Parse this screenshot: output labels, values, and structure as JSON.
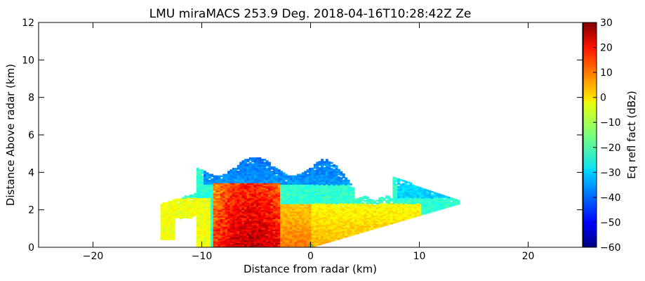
{
  "chart_data": {
    "type": "heatmap",
    "title": "LMU miraMACS 253.9 Deg. 2018-04-16T10:28:42Z  Ze",
    "xlabel": "Distance from radar (km)",
    "ylabel": "Distance Above radar  (km)",
    "xlim": [
      -25,
      25
    ],
    "ylim": [
      0,
      12
    ],
    "xticks": [
      -20,
      -10,
      0,
      10,
      20
    ],
    "yticks": [
      0,
      2,
      4,
      6,
      8,
      10,
      12
    ],
    "grid": false,
    "colorbar": {
      "label": "Eq refl fact (dBz)",
      "range": [
        -60,
        30
      ],
      "ticks": [
        30,
        20,
        10,
        0,
        -10,
        -20,
        -30,
        -40,
        -50,
        -60
      ],
      "colormap": "jet"
    },
    "echo_regions": [
      {
        "name": "upper_layer",
        "x": [
          -10.5,
          4.0
        ],
        "y": [
          3.3,
          5.0
        ],
        "dbz": -38
      },
      {
        "name": "mid_layer",
        "x": [
          -13.5,
          13.5
        ],
        "y": [
          1.8,
          3.6
        ],
        "dbz": -22
      },
      {
        "name": "convective_core",
        "x": [
          -9.0,
          -3.0
        ],
        "y": [
          0.0,
          3.4
        ],
        "dbz": 15
      },
      {
        "name": "precip_shaft",
        "x": [
          -3.0,
          9.0
        ],
        "y": [
          0.0,
          2.3
        ],
        "dbz": 5
      }
    ],
    "radar_origin": {
      "x": 0,
      "y": 0
    }
  }
}
